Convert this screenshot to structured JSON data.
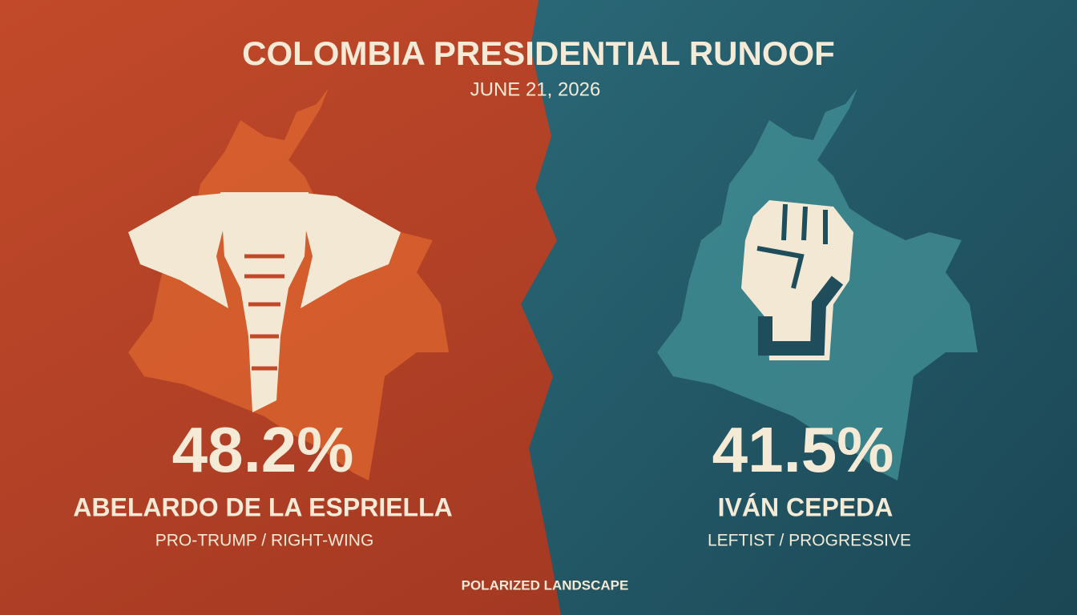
{
  "header": {
    "title": "COLOMBIA PRESIDENTIAL RUNOOF",
    "date": "JUNE 21, 2026"
  },
  "candidates": [
    {
      "share": "48.2%",
      "name": "ABELARDO DE LA ESPRIELLA",
      "label": "PRO-TRUMP / RIGHT-WING"
    },
    {
      "share": "41.5%",
      "name": "IVÁN CEPEDA",
      "label": "LEFTIST / PROGRESSIVE"
    }
  ],
  "footer": "POLARIZED LANDSCAPE"
}
